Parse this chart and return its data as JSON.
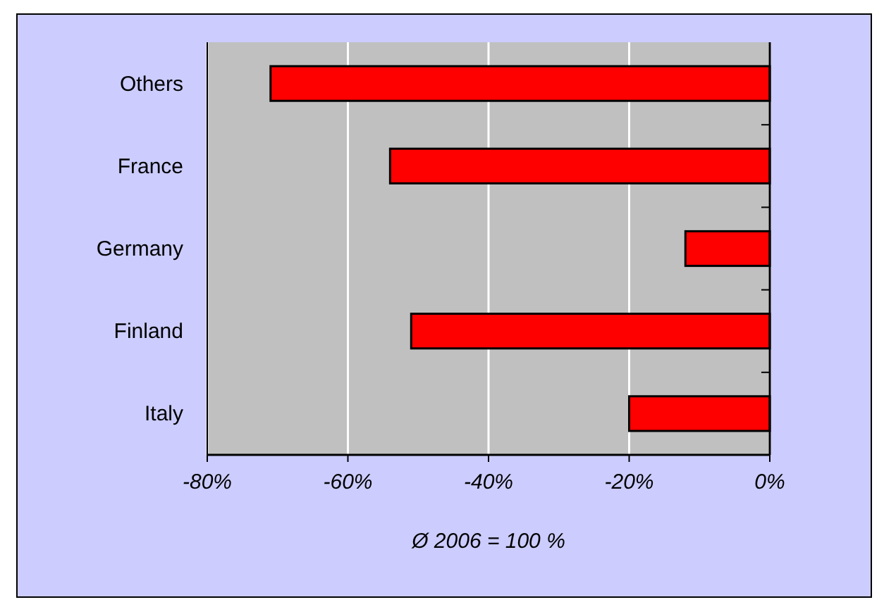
{
  "chart_data": {
    "type": "bar",
    "orientation": "horizontal",
    "categories": [
      "Others",
      "France",
      "Germany",
      "Finland",
      "Italy"
    ],
    "values": [
      -71,
      -54,
      -12,
      -51,
      -20
    ],
    "color": "#ff0000",
    "xlim": [
      -80,
      0
    ],
    "xticks": [
      {
        "value": -80,
        "label": "-80%"
      },
      {
        "value": -60,
        "label": "-60%"
      },
      {
        "value": -40,
        "label": "-40%"
      },
      {
        "value": -20,
        "label": "-20%"
      },
      {
        "value": 0,
        "label": "0%"
      }
    ],
    "grid": "x",
    "xlabel": "Ø  2006 = 100 %"
  }
}
